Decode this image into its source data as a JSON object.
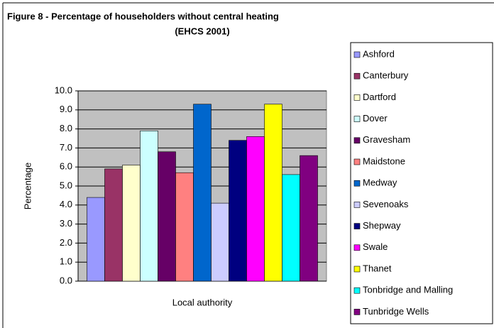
{
  "chart_data": {
    "type": "bar",
    "title": "Figure 8 - Percentage of householders without central heating",
    "subtitle": "(EHCS 2001)",
    "x_label": "Local authority",
    "y_label": "Percentage",
    "categories": [
      null
    ],
    "series": [
      {
        "name": "Ashford",
        "color": "#9999ff",
        "values": [
          4.4
        ]
      },
      {
        "name": "Canterbury",
        "color": "#993366",
        "values": [
          5.9
        ]
      },
      {
        "name": "Dartford",
        "color": "#ffffcc",
        "values": [
          6.1
        ]
      },
      {
        "name": "Dover",
        "color": "#ccffff",
        "values": [
          7.9
        ]
      },
      {
        "name": "Gravesham",
        "color": "#660066",
        "values": [
          6.8
        ]
      },
      {
        "name": "Maidstone",
        "color": "#ff8080",
        "values": [
          5.7
        ]
      },
      {
        "name": "Medway",
        "color": "#0066cc",
        "values": [
          9.3
        ]
      },
      {
        "name": "Sevenoaks",
        "color": "#ccccff",
        "values": [
          4.1
        ]
      },
      {
        "name": "Shepway",
        "color": "#000080",
        "values": [
          7.4
        ]
      },
      {
        "name": "Swale",
        "color": "#ff00ff",
        "values": [
          7.6
        ]
      },
      {
        "name": "Thanet",
        "color": "#ffff00",
        "values": [
          9.3
        ]
      },
      {
        "name": "Tonbridge and Malling",
        "color": "#00ffff",
        "values": [
          5.6
        ]
      },
      {
        "name": "Tunbridge Wells",
        "color": "#800080",
        "values": [
          6.6
        ]
      }
    ],
    "ylim": [
      0,
      10
    ],
    "yticks": [
      {
        "value": 0,
        "label": "0.0"
      },
      {
        "value": 1,
        "label": "1.0"
      },
      {
        "value": 2,
        "label": "2.0"
      },
      {
        "value": 3,
        "label": "3.0"
      },
      {
        "value": 4,
        "label": "4.0"
      },
      {
        "value": 5,
        "label": "5.0"
      },
      {
        "value": 6,
        "label": "6.0"
      },
      {
        "value": 7,
        "label": "7.0"
      },
      {
        "value": 8,
        "label": "8.0"
      },
      {
        "value": 9,
        "label": "9.0"
      },
      {
        "value": 10,
        "label": "10.0"
      }
    ],
    "grid": true,
    "legend": "right"
  }
}
